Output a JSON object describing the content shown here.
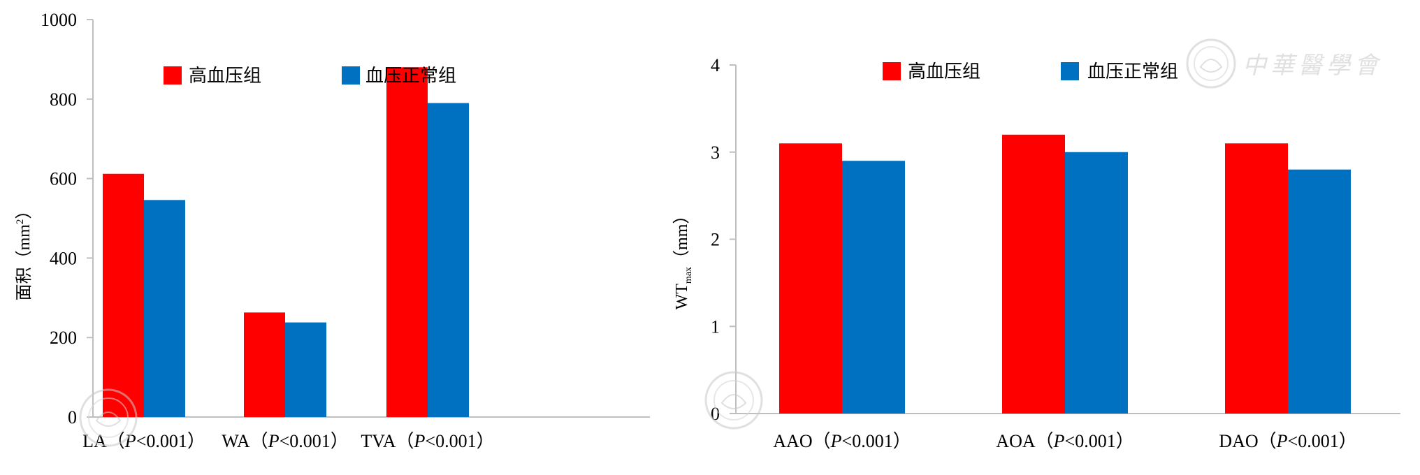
{
  "chart_data": [
    {
      "type": "bar",
      "categories": [
        "LA（P<0.001）",
        "WA（P<0.001）",
        "TVA（P<0.001）"
      ],
      "category_parts": [
        {
          "name": "LA",
          "p": "<0.001"
        },
        {
          "name": "WA",
          "p": "<0.001"
        },
        {
          "name": "TVA",
          "p": "<0.001"
        }
      ],
      "series": [
        {
          "name": "高血压组",
          "color": "#ff0000",
          "values": [
            612,
            263,
            880
          ]
        },
        {
          "name": "血压正常组",
          "color": "#0070c0",
          "values": [
            546,
            238,
            790
          ]
        }
      ],
      "ylabel": "面积（mm²）",
      "ylabel_main": "面积（mm",
      "ylabel_sup": "2",
      "ylabel_close": "）",
      "ylim": [
        0,
        1000
      ],
      "yticks": [
        0,
        200,
        400,
        600,
        800,
        1000
      ],
      "legend_position": "top"
    },
    {
      "type": "bar",
      "categories": [
        "AAO（P<0.001）",
        "AOA（P<0.001）",
        "DAO（P<0.001）"
      ],
      "category_parts": [
        {
          "name": "AAO",
          "p": "<0.001"
        },
        {
          "name": "AOA",
          "p": "<0.001"
        },
        {
          "name": "DAO",
          "p": "<0.001"
        }
      ],
      "series": [
        {
          "name": "高血压组",
          "color": "#ff0000",
          "values": [
            3.1,
            3.2,
            3.1
          ]
        },
        {
          "name": "血压正常组",
          "color": "#0070c0",
          "values": [
            2.9,
            3.0,
            2.8
          ]
        }
      ],
      "ylabel": "WTmax（mm）",
      "ylabel_main": "WT",
      "ylabel_sub": "max",
      "ylabel_unit": "（mm）",
      "ylim": [
        0,
        4
      ],
      "yticks": [
        0,
        1,
        2,
        3,
        4
      ],
      "legend_position": "top"
    }
  ],
  "watermark": {
    "text": "中華醫學會",
    "color": "#c8c8c8"
  }
}
